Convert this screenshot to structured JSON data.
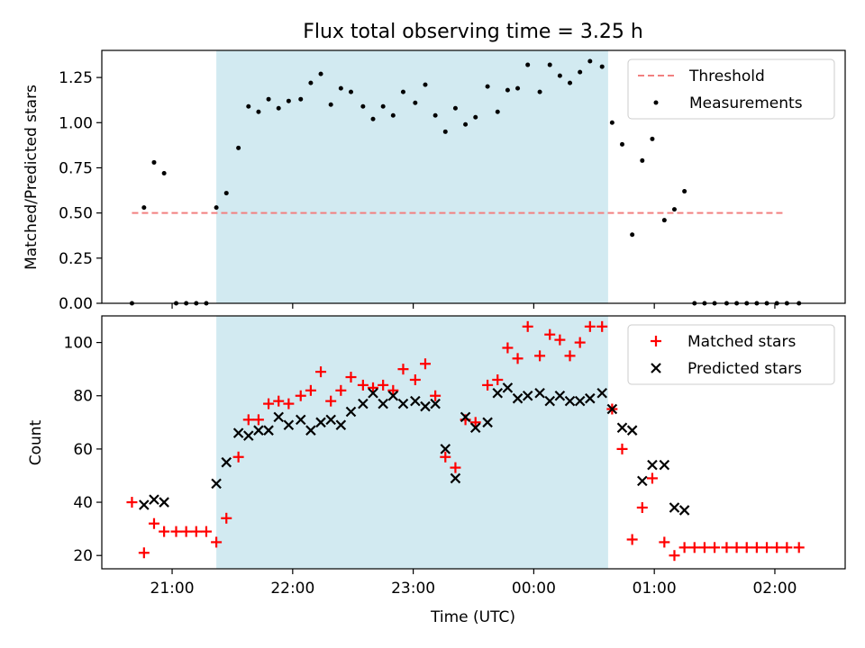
{
  "figure": {
    "title": "Flux total observing time = 3.25 h"
  },
  "colors": {
    "shade": "#add8e6",
    "threshold": "#f28080",
    "measurement": "#000000",
    "matched": "#ff0000",
    "predicted": "#000000"
  },
  "chart_data": [
    {
      "type": "scatter",
      "panel": "top",
      "ylabel": "Matched/Predicted stars",
      "xlabel": "",
      "ylim": [
        0,
        1.4
      ],
      "yticks": [
        0.0,
        0.25,
        0.5,
        0.75,
        1.0,
        1.25
      ],
      "ytick_labels": [
        "0.00",
        "0.25",
        "0.50",
        "0.75",
        "1.00",
        "1.25"
      ],
      "grid": false,
      "legend": {
        "placement": "top-right",
        "entries": [
          "Threshold",
          "Measurements"
        ]
      },
      "shaded_interval": {
        "start": "21:22",
        "end": "00:37"
      },
      "threshold": {
        "name": "Threshold",
        "value": 0.5,
        "x_start": "20:40",
        "x_end": "02:05"
      },
      "series": [
        {
          "name": "Measurements",
          "points": [
            [
              "20:40",
              0.0
            ],
            [
              "20:46",
              0.53
            ],
            [
              "20:51",
              0.78
            ],
            [
              "20:56",
              0.72
            ],
            [
              "21:02",
              0.0
            ],
            [
              "21:07",
              0.0
            ],
            [
              "21:12",
              0.0
            ],
            [
              "21:17",
              0.0
            ],
            [
              "21:22",
              0.53
            ],
            [
              "21:27",
              0.61
            ],
            [
              "21:33",
              0.86
            ],
            [
              "21:38",
              1.09
            ],
            [
              "21:43",
              1.06
            ],
            [
              "21:48",
              1.13
            ],
            [
              "21:53",
              1.08
            ],
            [
              "21:58",
              1.12
            ],
            [
              "22:04",
              1.13
            ],
            [
              "22:09",
              1.22
            ],
            [
              "22:14",
              1.27
            ],
            [
              "22:19",
              1.1
            ],
            [
              "22:24",
              1.19
            ],
            [
              "22:29",
              1.17
            ],
            [
              "22:35",
              1.09
            ],
            [
              "22:40",
              1.02
            ],
            [
              "22:45",
              1.09
            ],
            [
              "22:50",
              1.04
            ],
            [
              "22:55",
              1.17
            ],
            [
              "23:01",
              1.11
            ],
            [
              "23:06",
              1.21
            ],
            [
              "23:11",
              1.04
            ],
            [
              "23:16",
              0.95
            ],
            [
              "23:21",
              1.08
            ],
            [
              "23:26",
              0.99
            ],
            [
              "23:31",
              1.03
            ],
            [
              "23:37",
              1.2
            ],
            [
              "23:42",
              1.06
            ],
            [
              "23:47",
              1.18
            ],
            [
              "23:52",
              1.19
            ],
            [
              "23:57",
              1.32
            ],
            [
              "00:03",
              1.17
            ],
            [
              "00:08",
              1.32
            ],
            [
              "00:13",
              1.26
            ],
            [
              "00:18",
              1.22
            ],
            [
              "00:23",
              1.28
            ],
            [
              "00:28",
              1.34
            ],
            [
              "00:34",
              1.31
            ],
            [
              "00:39",
              1.0
            ],
            [
              "00:44",
              0.88
            ],
            [
              "00:49",
              0.38
            ],
            [
              "00:54",
              0.79
            ],
            [
              "00:59",
              0.91
            ],
            [
              "01:05",
              0.46
            ],
            [
              "01:10",
              0.52
            ],
            [
              "01:15",
              0.62
            ],
            [
              "01:20",
              0.0
            ],
            [
              "01:25",
              0.0
            ],
            [
              "01:30",
              0.0
            ],
            [
              "01:36",
              0.0
            ],
            [
              "01:41",
              0.0
            ],
            [
              "01:46",
              0.0
            ],
            [
              "01:51",
              0.0
            ],
            [
              "01:56",
              0.0
            ],
            [
              "02:01",
              0.0
            ],
            [
              "02:06",
              0.0
            ],
            [
              "02:12",
              0.0
            ]
          ]
        }
      ]
    },
    {
      "type": "scatter",
      "panel": "bottom",
      "ylabel": "Count",
      "xlabel": "Time (UTC)",
      "ylim": [
        15,
        110
      ],
      "yticks": [
        20,
        40,
        60,
        80,
        100
      ],
      "ytick_labels": [
        "20",
        "40",
        "60",
        "80",
        "100"
      ],
      "xticks": [
        "21:00",
        "22:00",
        "23:00",
        "00:00",
        "01:00",
        "02:00"
      ],
      "grid": false,
      "legend": {
        "placement": "top-right",
        "entries": [
          "Matched stars",
          "Predicted stars"
        ]
      },
      "shaded_interval": {
        "start": "21:22",
        "end": "00:37"
      },
      "series": [
        {
          "name": "Matched stars",
          "marker": "plus",
          "points": [
            [
              "20:40",
              40
            ],
            [
              "20:46",
              21
            ],
            [
              "20:51",
              32
            ],
            [
              "20:56",
              29
            ],
            [
              "21:02",
              29
            ],
            [
              "21:07",
              29
            ],
            [
              "21:12",
              29
            ],
            [
              "21:17",
              29
            ],
            [
              "21:22",
              25
            ],
            [
              "21:27",
              34
            ],
            [
              "21:33",
              57
            ],
            [
              "21:38",
              71
            ],
            [
              "21:43",
              71
            ],
            [
              "21:48",
              77
            ],
            [
              "21:53",
              78
            ],
            [
              "21:58",
              77
            ],
            [
              "22:04",
              80
            ],
            [
              "22:09",
              82
            ],
            [
              "22:14",
              89
            ],
            [
              "22:19",
              78
            ],
            [
              "22:24",
              82
            ],
            [
              "22:29",
              87
            ],
            [
              "22:35",
              84
            ],
            [
              "22:40",
              83
            ],
            [
              "22:45",
              84
            ],
            [
              "22:50",
              82
            ],
            [
              "22:55",
              90
            ],
            [
              "23:01",
              86
            ],
            [
              "23:06",
              92
            ],
            [
              "23:11",
              80
            ],
            [
              "23:16",
              57
            ],
            [
              "23:21",
              53
            ],
            [
              "23:26",
              71
            ],
            [
              "23:31",
              70
            ],
            [
              "23:37",
              84
            ],
            [
              "23:42",
              86
            ],
            [
              "23:47",
              98
            ],
            [
              "23:52",
              94
            ],
            [
              "23:57",
              106
            ],
            [
              "00:03",
              95
            ],
            [
              "00:08",
              103
            ],
            [
              "00:13",
              101
            ],
            [
              "00:18",
              95
            ],
            [
              "00:23",
              100
            ],
            [
              "00:28",
              106
            ],
            [
              "00:34",
              106
            ],
            [
              "00:39",
              75
            ],
            [
              "00:44",
              60
            ],
            [
              "00:49",
              26
            ],
            [
              "00:54",
              38
            ],
            [
              "00:59",
              49
            ],
            [
              "01:05",
              25
            ],
            [
              "01:10",
              20
            ],
            [
              "01:15",
              23
            ],
            [
              "01:20",
              23
            ],
            [
              "01:25",
              23
            ],
            [
              "01:30",
              23
            ],
            [
              "01:36",
              23
            ],
            [
              "01:41",
              23
            ],
            [
              "01:46",
              23
            ],
            [
              "01:51",
              23
            ],
            [
              "01:56",
              23
            ],
            [
              "02:01",
              23
            ],
            [
              "02:06",
              23
            ],
            [
              "02:12",
              23
            ]
          ]
        },
        {
          "name": "Predicted stars",
          "marker": "cross",
          "points": [
            [
              "20:46",
              39
            ],
            [
              "20:51",
              41
            ],
            [
              "20:56",
              40
            ],
            [
              "21:22",
              47
            ],
            [
              "21:27",
              55
            ],
            [
              "21:33",
              66
            ],
            [
              "21:38",
              65
            ],
            [
              "21:43",
              67
            ],
            [
              "21:48",
              67
            ],
            [
              "21:53",
              72
            ],
            [
              "21:58",
              69
            ],
            [
              "22:04",
              71
            ],
            [
              "22:09",
              67
            ],
            [
              "22:14",
              70
            ],
            [
              "22:19",
              71
            ],
            [
              "22:24",
              69
            ],
            [
              "22:29",
              74
            ],
            [
              "22:35",
              77
            ],
            [
              "22:40",
              81
            ],
            [
              "22:45",
              77
            ],
            [
              "22:50",
              80
            ],
            [
              "22:55",
              77
            ],
            [
              "23:01",
              78
            ],
            [
              "23:06",
              76
            ],
            [
              "23:11",
              77
            ],
            [
              "23:16",
              60
            ],
            [
              "23:21",
              49
            ],
            [
              "23:26",
              72
            ],
            [
              "23:31",
              68
            ],
            [
              "23:37",
              70
            ],
            [
              "23:42",
              81
            ],
            [
              "23:47",
              83
            ],
            [
              "23:52",
              79
            ],
            [
              "23:57",
              80
            ],
            [
              "00:03",
              81
            ],
            [
              "00:08",
              78
            ],
            [
              "00:13",
              80
            ],
            [
              "00:18",
              78
            ],
            [
              "00:23",
              78
            ],
            [
              "00:28",
              79
            ],
            [
              "00:34",
              81
            ],
            [
              "00:39",
              75
            ],
            [
              "00:44",
              68
            ],
            [
              "00:49",
              67
            ],
            [
              "00:54",
              48
            ],
            [
              "00:59",
              54
            ],
            [
              "01:05",
              54
            ],
            [
              "01:10",
              38
            ],
            [
              "01:15",
              37
            ]
          ]
        }
      ]
    }
  ]
}
